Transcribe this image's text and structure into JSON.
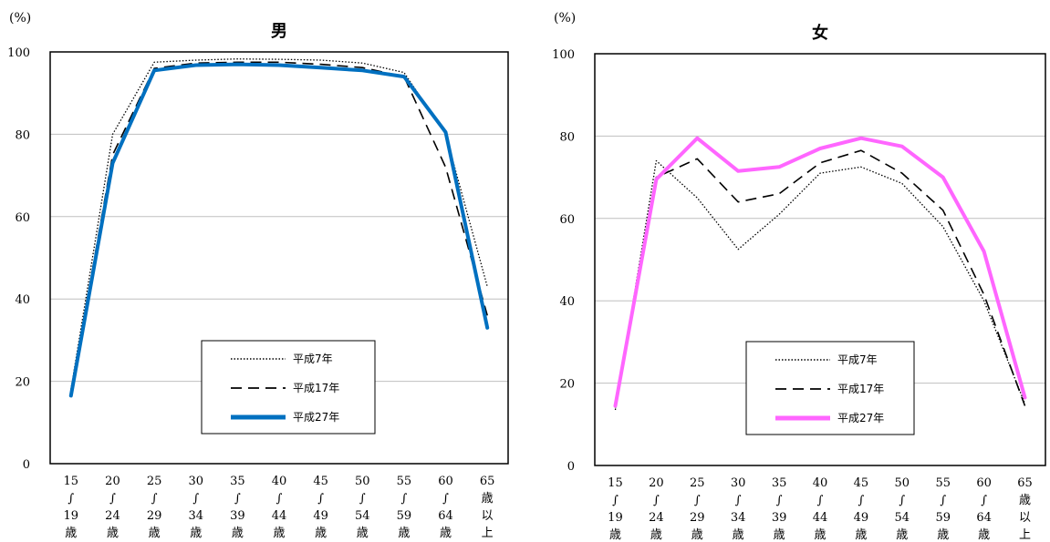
{
  "chart_data": [
    {
      "type": "line",
      "title": "男",
      "y_unit": "(%)",
      "ylim": [
        0,
        100
      ],
      "yticks": [
        "0",
        "20",
        "40",
        "60",
        "80",
        "100"
      ],
      "grid": true,
      "legend_position": "lower-center",
      "categories": [
        [
          "15",
          "∫",
          "19",
          "歳"
        ],
        [
          "20",
          "∫",
          "24",
          "歳"
        ],
        [
          "25",
          "∫",
          "29",
          "歳"
        ],
        [
          "30",
          "∫",
          "34",
          "歳"
        ],
        [
          "35",
          "∫",
          "39",
          "歳"
        ],
        [
          "40",
          "∫",
          "44",
          "歳"
        ],
        [
          "45",
          "∫",
          "49",
          "歳"
        ],
        [
          "50",
          "∫",
          "54",
          "歳"
        ],
        [
          "55",
          "∫",
          "59",
          "歳"
        ],
        [
          "60",
          "∫",
          "64",
          "歳"
        ],
        [
          "65",
          "歳",
          "以",
          "上"
        ]
      ],
      "series": [
        {
          "name": "平成7年",
          "style": "dotted",
          "color": "#000000",
          "values": [
            18,
            80,
            97.5,
            98,
            98.3,
            98.2,
            98,
            97.3,
            95,
            80,
            43
          ]
        },
        {
          "name": "平成17年",
          "style": "dashed",
          "color": "#000000",
          "values": [
            17.5,
            75,
            96,
            97.3,
            97.5,
            97.5,
            97,
            96.2,
            94,
            72,
            36
          ]
        },
        {
          "name": "平成27年",
          "style": "solid",
          "color": "#0070C0",
          "values": [
            16.5,
            73,
            95.5,
            96.8,
            97,
            96.8,
            96.2,
            95.5,
            94,
            80.5,
            33
          ]
        }
      ]
    },
    {
      "type": "line",
      "title": "女",
      "y_unit": "(%)",
      "ylim": [
        0,
        100
      ],
      "yticks": [
        "0",
        "20",
        "40",
        "60",
        "80",
        "100"
      ],
      "grid": true,
      "legend_position": "lower-center",
      "categories": [
        [
          "15",
          "∫",
          "19",
          "歳"
        ],
        [
          "20",
          "∫",
          "24",
          "歳"
        ],
        [
          "25",
          "∫",
          "29",
          "歳"
        ],
        [
          "30",
          "∫",
          "34",
          "歳"
        ],
        [
          "35",
          "∫",
          "39",
          "歳"
        ],
        [
          "40",
          "∫",
          "44",
          "歳"
        ],
        [
          "45",
          "∫",
          "49",
          "歳"
        ],
        [
          "50",
          "∫",
          "54",
          "歳"
        ],
        [
          "55",
          "∫",
          "59",
          "歳"
        ],
        [
          "60",
          "∫",
          "64",
          "歳"
        ],
        [
          "65",
          "歳",
          "以",
          "上"
        ]
      ],
      "series": [
        {
          "name": "平成7年",
          "style": "dotted",
          "color": "#000000",
          "values": [
            13.5,
            74,
            65,
            52.5,
            61,
            71,
            72.5,
            68.5,
            58,
            40,
            15
          ]
        },
        {
          "name": "平成17年",
          "style": "dashed",
          "color": "#000000",
          "values": [
            14,
            70,
            74.5,
            64,
            66,
            73.5,
            76.5,
            71,
            62,
            41.5,
            14.5
          ]
        },
        {
          "name": "平成27年",
          "style": "solid",
          "color": "#FF66FF",
          "values": [
            14.5,
            69.5,
            79.5,
            71.5,
            72.5,
            77,
            79.5,
            77.5,
            70,
            52,
            16.5
          ]
        }
      ]
    }
  ]
}
